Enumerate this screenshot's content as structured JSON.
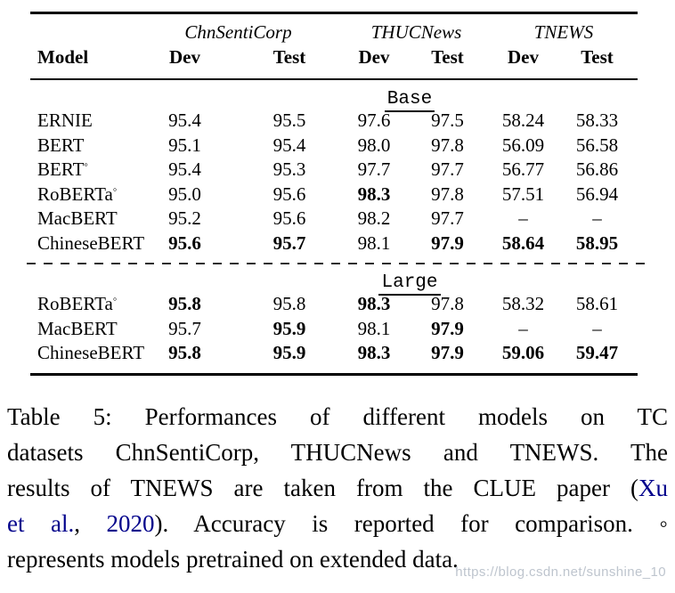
{
  "colors": {
    "text": "#000000",
    "link": "#00008b",
    "rule": "#000000",
    "watermark": "#bbc2cb"
  },
  "table": {
    "column_groups": [
      {
        "label": "ChnSentiCorp"
      },
      {
        "label": "THUCNews"
      },
      {
        "label": "TNEWS"
      }
    ],
    "header": {
      "model": "Model",
      "sub": [
        "Dev",
        "Test",
        "Dev",
        "Test",
        "Dev",
        "Test"
      ]
    },
    "sections": [
      {
        "label": "Base",
        "rows": [
          {
            "model": "ERNIE",
            "sup": "",
            "cells": [
              [
                "95.4",
                0
              ],
              [
                "95.5",
                0
              ],
              [
                "97.6",
                0
              ],
              [
                "97.5",
                0
              ],
              [
                "58.24",
                0
              ],
              [
                "58.33",
                0
              ]
            ]
          },
          {
            "model": "BERT",
            "sup": "",
            "cells": [
              [
                "95.1",
                0
              ],
              [
                "95.4",
                0
              ],
              [
                "98.0",
                0
              ],
              [
                "97.8",
                0
              ],
              [
                "56.09",
                0
              ],
              [
                "56.58",
                0
              ]
            ]
          },
          {
            "model": "BERT",
            "sup": "◦",
            "cells": [
              [
                "95.4",
                0
              ],
              [
                "95.3",
                0
              ],
              [
                "97.7",
                0
              ],
              [
                "97.7",
                0
              ],
              [
                "56.77",
                0
              ],
              [
                "56.86",
                0
              ]
            ]
          },
          {
            "model": "RoBERTa",
            "sup": "◦",
            "cells": [
              [
                "95.0",
                0
              ],
              [
                "95.6",
                0
              ],
              [
                "98.3",
                1
              ],
              [
                "97.8",
                0
              ],
              [
                "57.51",
                0
              ],
              [
                "56.94",
                0
              ]
            ]
          },
          {
            "model": "MacBERT",
            "sup": "",
            "cells": [
              [
                "95.2",
                0
              ],
              [
                "95.6",
                0
              ],
              [
                "98.2",
                0
              ],
              [
                "97.7",
                0
              ],
              [
                "–",
                0
              ],
              [
                "–",
                0
              ]
            ]
          },
          {
            "model": "ChineseBERT",
            "sup": "",
            "cells": [
              [
                "95.6",
                1
              ],
              [
                "95.7",
                1
              ],
              [
                "98.1",
                0
              ],
              [
                "97.9",
                1
              ],
              [
                "58.64",
                1
              ],
              [
                "58.95",
                1
              ]
            ]
          }
        ]
      },
      {
        "label": "Large",
        "rows": [
          {
            "model": "RoBERTa",
            "sup": "◦",
            "cells": [
              [
                "95.8",
                1
              ],
              [
                "95.8",
                0
              ],
              [
                "98.3",
                1
              ],
              [
                "97.8",
                0
              ],
              [
                "58.32",
                0
              ],
              [
                "58.61",
                0
              ]
            ]
          },
          {
            "model": "MacBERT",
            "sup": "",
            "cells": [
              [
                "95.7",
                0
              ],
              [
                "95.9",
                1
              ],
              [
                "98.1",
                0
              ],
              [
                "97.9",
                1
              ],
              [
                "–",
                0
              ],
              [
                "–",
                0
              ]
            ]
          },
          {
            "model": "ChineseBERT",
            "sup": "",
            "cells": [
              [
                "95.8",
                1
              ],
              [
                "95.9",
                1
              ],
              [
                "98.3",
                1
              ],
              [
                "97.9",
                1
              ],
              [
                "59.06",
                1
              ],
              [
                "59.47",
                1
              ]
            ]
          }
        ]
      }
    ]
  },
  "caption": {
    "lines": [
      {
        "justify": true,
        "segments": [
          {
            "t": "Table 5:  Performances of different models on TC"
          }
        ]
      },
      {
        "justify": true,
        "segments": [
          {
            "t": "datasets ChnSentiCorp, THUCNews and TNEWS. The"
          }
        ]
      },
      {
        "justify": true,
        "segments": [
          {
            "t": "results of TNEWS are taken from the CLUE paper ("
          },
          {
            "t": "Xu",
            "link": true
          }
        ]
      },
      {
        "justify": true,
        "segments": [
          {
            "t": "et al.",
            "link": true
          },
          {
            "t": ", "
          },
          {
            "t": "2020",
            "link": true
          },
          {
            "t": ").  Accuracy is reported for comparison.  ◦"
          }
        ]
      },
      {
        "justify": false,
        "segments": [
          {
            "t": "represents models pretrained on extended data."
          }
        ]
      }
    ]
  },
  "watermark": {
    "text": "https://blog.csdn.net/sunshine_10"
  }
}
